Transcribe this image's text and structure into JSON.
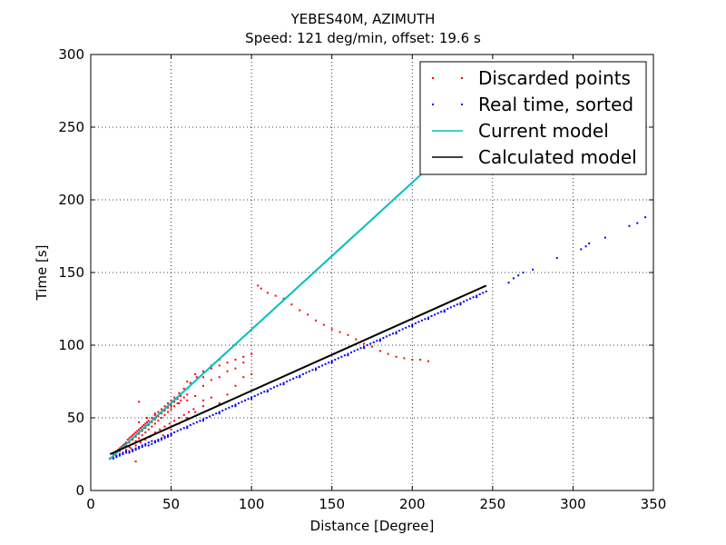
{
  "chart_data": {
    "type": "scatter",
    "title": "YEBES40M, AZIMUTH",
    "subtitle": "Speed: 121 deg/min, offset: 19.6 s",
    "xlabel": "Distance [Degree]",
    "ylabel": "Time [s]",
    "xlim": [
      0,
      350
    ],
    "ylim": [
      0,
      300
    ],
    "xticks": [
      0,
      50,
      100,
      150,
      200,
      250,
      300,
      350
    ],
    "yticks": [
      0,
      50,
      100,
      150,
      200,
      250,
      300
    ],
    "grid": true,
    "legend_position": "top-right",
    "series": [
      {
        "name": "Discarded points",
        "kind": "points",
        "color": "#ff0000",
        "points": [
          [
            14,
            25
          ],
          [
            15,
            26
          ],
          [
            16,
            27
          ],
          [
            17,
            28
          ],
          [
            18,
            29
          ],
          [
            19,
            30
          ],
          [
            20,
            31
          ],
          [
            21,
            32
          ],
          [
            22,
            33
          ],
          [
            23,
            35
          ],
          [
            24,
            36
          ],
          [
            25,
            37
          ],
          [
            26,
            38
          ],
          [
            27,
            39
          ],
          [
            28,
            40
          ],
          [
            29,
            41
          ],
          [
            30,
            42
          ],
          [
            31,
            43
          ],
          [
            32,
            44
          ],
          [
            33,
            45
          ],
          [
            34,
            46
          ],
          [
            35,
            47
          ],
          [
            36,
            48
          ],
          [
            38,
            50
          ],
          [
            40,
            52
          ],
          [
            42,
            54
          ],
          [
            44,
            56
          ],
          [
            46,
            58
          ],
          [
            48,
            60
          ],
          [
            50,
            62
          ],
          [
            52,
            64
          ],
          [
            55,
            67
          ],
          [
            58,
            70
          ],
          [
            62,
            74
          ],
          [
            66,
            78
          ],
          [
            70,
            82
          ],
          [
            75,
            86
          ],
          [
            80,
            90
          ],
          [
            18,
            27
          ],
          [
            20,
            29
          ],
          [
            22,
            31
          ],
          [
            24,
            33
          ],
          [
            26,
            35
          ],
          [
            28,
            37
          ],
          [
            30,
            39
          ],
          [
            32,
            41
          ],
          [
            34,
            43
          ],
          [
            36,
            45
          ],
          [
            38,
            47
          ],
          [
            40,
            49
          ],
          [
            42,
            51
          ],
          [
            44,
            53
          ],
          [
            46,
            55
          ],
          [
            48,
            57
          ],
          [
            50,
            59
          ],
          [
            52,
            61
          ],
          [
            54,
            63
          ],
          [
            56,
            65
          ],
          [
            20,
            26
          ],
          [
            22,
            28
          ],
          [
            24,
            30
          ],
          [
            26,
            32
          ],
          [
            28,
            34
          ],
          [
            30,
            36
          ],
          [
            32,
            38
          ],
          [
            34,
            40
          ],
          [
            36,
            42
          ],
          [
            38,
            44
          ],
          [
            40,
            46
          ],
          [
            42,
            48
          ],
          [
            44,
            50
          ],
          [
            46,
            52
          ],
          [
            48,
            54
          ],
          [
            50,
            56
          ],
          [
            52,
            58
          ],
          [
            54,
            60
          ],
          [
            56,
            62
          ],
          [
            58,
            64
          ],
          [
            60,
            66
          ],
          [
            25,
            29
          ],
          [
            28,
            31
          ],
          [
            31,
            33
          ],
          [
            34,
            35
          ],
          [
            37,
            37
          ],
          [
            40,
            40
          ],
          [
            43,
            42
          ],
          [
            46,
            44
          ],
          [
            49,
            46
          ],
          [
            52,
            48
          ],
          [
            55,
            50
          ],
          [
            58,
            52
          ],
          [
            61,
            54
          ],
          [
            64,
            56
          ],
          [
            30,
            47
          ],
          [
            35,
            50
          ],
          [
            40,
            53
          ],
          [
            45,
            55
          ],
          [
            50,
            58
          ],
          [
            55,
            60
          ],
          [
            60,
            62
          ],
          [
            65,
            65
          ],
          [
            70,
            62
          ],
          [
            75,
            64
          ],
          [
            80,
            60
          ],
          [
            85,
            66
          ],
          [
            90,
            72
          ],
          [
            95,
            78
          ],
          [
            100,
            80
          ],
          [
            60,
            75
          ],
          [
            65,
            80
          ],
          [
            70,
            78
          ],
          [
            75,
            84
          ],
          [
            80,
            86
          ],
          [
            85,
            88
          ],
          [
            90,
            90
          ],
          [
            95,
            92
          ],
          [
            100,
            94
          ],
          [
            95,
            88
          ],
          [
            90,
            84
          ],
          [
            85,
            82
          ],
          [
            80,
            78
          ],
          [
            75,
            76
          ],
          [
            70,
            72
          ],
          [
            30,
            61
          ],
          [
            28,
            20
          ],
          [
            45,
            38
          ],
          [
            50,
            42
          ],
          [
            55,
            46
          ],
          [
            60,
            50
          ],
          [
            65,
            54
          ],
          [
            70,
            58
          ],
          [
            104,
            141
          ],
          [
            106,
            139
          ],
          [
            110,
            136
          ],
          [
            115,
            134
          ],
          [
            120,
            132
          ],
          [
            125,
            128
          ],
          [
            130,
            124
          ],
          [
            135,
            121
          ],
          [
            140,
            117
          ],
          [
            145,
            114
          ],
          [
            150,
            111
          ],
          [
            155,
            109
          ],
          [
            160,
            107
          ],
          [
            165,
            104
          ],
          [
            170,
            101
          ],
          [
            175,
            99
          ],
          [
            180,
            96
          ],
          [
            185,
            94
          ],
          [
            190,
            92
          ],
          [
            195,
            91
          ],
          [
            200,
            90
          ],
          [
            205,
            90
          ],
          [
            210,
            89
          ]
        ]
      },
      {
        "name": "Real time, sorted",
        "kind": "points",
        "color": "#0000ff",
        "points": [
          [
            12,
            22
          ],
          [
            14,
            23
          ],
          [
            16,
            24
          ],
          [
            18,
            25
          ],
          [
            20,
            26
          ],
          [
            22,
            27
          ],
          [
            24,
            27
          ],
          [
            26,
            28
          ],
          [
            28,
            29
          ],
          [
            30,
            30
          ],
          [
            32,
            31
          ],
          [
            34,
            32
          ],
          [
            36,
            33
          ],
          [
            38,
            34
          ],
          [
            40,
            34
          ],
          [
            42,
            35
          ],
          [
            44,
            36
          ],
          [
            46,
            37
          ],
          [
            48,
            38
          ],
          [
            50,
            39
          ],
          [
            52,
            40
          ],
          [
            54,
            41
          ],
          [
            56,
            42
          ],
          [
            58,
            43
          ],
          [
            60,
            44
          ],
          [
            62,
            45
          ],
          [
            64,
            46
          ],
          [
            66,
            47
          ],
          [
            68,
            48
          ],
          [
            70,
            49
          ],
          [
            72,
            50
          ],
          [
            74,
            51
          ],
          [
            76,
            52
          ],
          [
            78,
            53
          ],
          [
            80,
            54
          ],
          [
            82,
            55
          ],
          [
            84,
            56
          ],
          [
            86,
            57
          ],
          [
            88,
            58
          ],
          [
            90,
            59
          ],
          [
            92,
            60
          ],
          [
            94,
            61
          ],
          [
            96,
            62
          ],
          [
            98,
            63
          ],
          [
            100,
            64
          ],
          [
            102,
            65
          ],
          [
            104,
            66
          ],
          [
            106,
            67
          ],
          [
            108,
            68
          ],
          [
            110,
            69
          ],
          [
            112,
            70
          ],
          [
            114,
            71
          ],
          [
            116,
            72
          ],
          [
            118,
            73
          ],
          [
            120,
            74
          ],
          [
            122,
            75
          ],
          [
            124,
            76
          ],
          [
            126,
            77
          ],
          [
            128,
            78
          ],
          [
            130,
            79
          ],
          [
            132,
            80
          ],
          [
            134,
            81
          ],
          [
            136,
            82
          ],
          [
            138,
            83
          ],
          [
            140,
            84
          ],
          [
            142,
            85
          ],
          [
            144,
            86
          ],
          [
            146,
            87
          ],
          [
            148,
            88
          ],
          [
            150,
            89
          ],
          [
            152,
            90
          ],
          [
            154,
            91
          ],
          [
            156,
            92
          ],
          [
            158,
            93
          ],
          [
            160,
            94
          ],
          [
            162,
            95
          ],
          [
            164,
            96
          ],
          [
            166,
            97
          ],
          [
            168,
            98
          ],
          [
            170,
            99
          ],
          [
            172,
            100
          ],
          [
            174,
            101
          ],
          [
            176,
            102
          ],
          [
            178,
            103
          ],
          [
            180,
            104
          ],
          [
            182,
            105
          ],
          [
            184,
            106
          ],
          [
            186,
            107
          ],
          [
            188,
            108
          ],
          [
            190,
            109
          ],
          [
            192,
            110
          ],
          [
            194,
            111
          ],
          [
            196,
            112
          ],
          [
            198,
            113
          ],
          [
            200,
            114
          ],
          [
            202,
            115
          ],
          [
            204,
            116
          ],
          [
            206,
            117
          ],
          [
            208,
            118
          ],
          [
            210,
            119
          ],
          [
            212,
            120
          ],
          [
            214,
            121
          ],
          [
            216,
            122
          ],
          [
            218,
            123
          ],
          [
            220,
            124
          ],
          [
            222,
            125
          ],
          [
            224,
            126
          ],
          [
            226,
            127
          ],
          [
            228,
            128
          ],
          [
            230,
            129
          ],
          [
            232,
            130
          ],
          [
            234,
            131
          ],
          [
            236,
            132
          ],
          [
            238,
            133
          ],
          [
            240,
            134
          ],
          [
            242,
            135
          ],
          [
            244,
            136
          ],
          [
            246,
            137
          ],
          [
            14,
            22
          ],
          [
            16,
            23
          ],
          [
            18,
            24
          ],
          [
            20,
            25
          ],
          [
            22,
            26
          ],
          [
            24,
            26
          ],
          [
            26,
            27
          ],
          [
            28,
            28
          ],
          [
            30,
            29
          ],
          [
            32,
            30
          ],
          [
            34,
            31
          ],
          [
            36,
            31
          ],
          [
            38,
            32
          ],
          [
            40,
            33
          ],
          [
            42,
            34
          ],
          [
            44,
            35
          ],
          [
            46,
            36
          ],
          [
            48,
            37
          ],
          [
            50,
            38
          ],
          [
            60,
            43
          ],
          [
            70,
            48
          ],
          [
            80,
            53
          ],
          [
            90,
            58
          ],
          [
            100,
            63
          ],
          [
            110,
            68
          ],
          [
            120,
            73
          ],
          [
            130,
            78
          ],
          [
            140,
            83
          ],
          [
            150,
            88
          ],
          [
            160,
            93
          ],
          [
            170,
            98
          ],
          [
            180,
            103
          ],
          [
            190,
            108
          ],
          [
            200,
            113
          ],
          [
            210,
            118
          ],
          [
            220,
            123
          ],
          [
            230,
            128
          ],
          [
            240,
            133
          ],
          [
            260,
            143
          ],
          [
            263,
            146
          ],
          [
            266,
            148
          ],
          [
            269,
            150
          ],
          [
            275,
            152
          ],
          [
            290,
            160
          ],
          [
            305,
            166
          ],
          [
            308,
            168
          ],
          [
            310,
            170
          ],
          [
            320,
            174
          ],
          [
            335,
            182
          ],
          [
            340,
            184
          ],
          [
            345,
            188
          ]
        ]
      },
      {
        "name": "Current model",
        "kind": "line",
        "color": "#00bfbf",
        "x": [
          12,
          210
        ],
        "y": [
          21.8,
          222
        ]
      },
      {
        "name": "Calculated model",
        "kind": "line",
        "color": "#000000",
        "x": [
          12,
          246
        ],
        "y": [
          25,
          141
        ]
      }
    ]
  }
}
